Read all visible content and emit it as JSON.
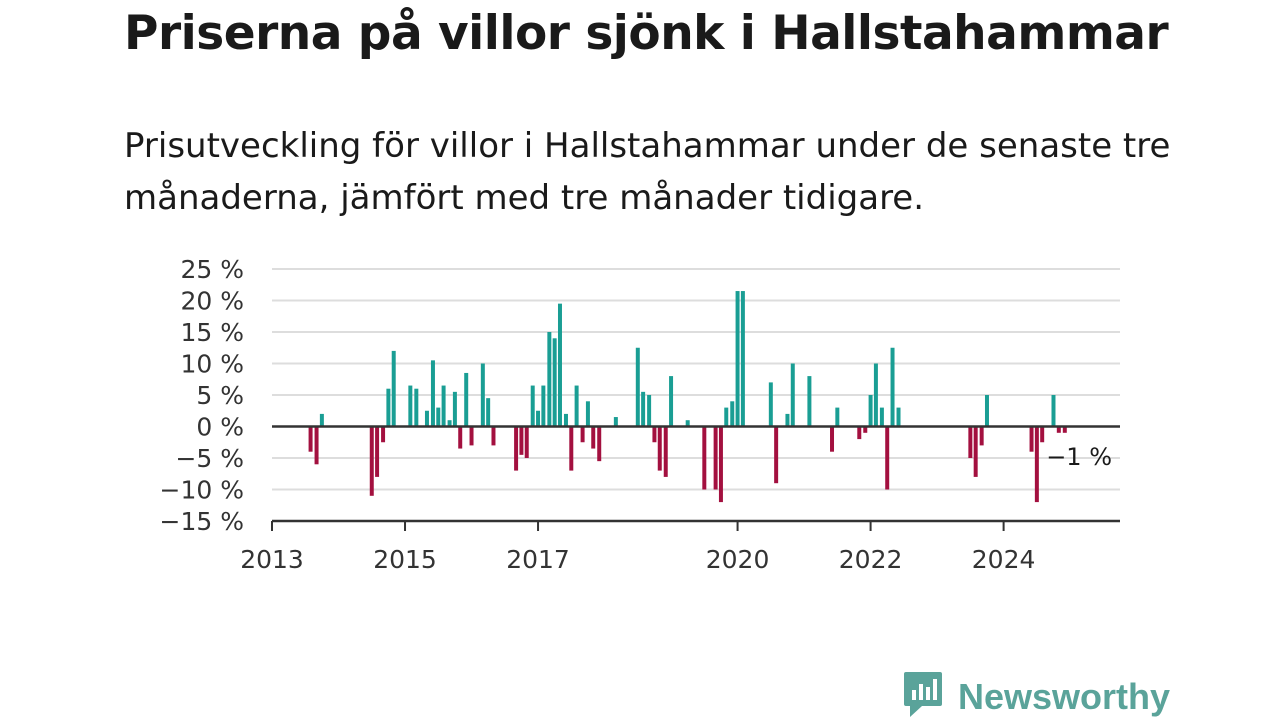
{
  "header": {
    "title": "Priserna på villor sjönk i Hallstahammar",
    "subtitle": "Prisutveckling för villor i Hallstahammar under de senaste tre månaderna, jämfört med tre månader tidigare."
  },
  "brand": {
    "name": "Newsworthy",
    "icon": "newsworthy-logo-icon"
  },
  "colors": {
    "positive": "#1a9e94",
    "negative": "#a3103f",
    "grid": "#dddddd",
    "axis": "#333333"
  },
  "chart_data": {
    "type": "bar",
    "ylim": [
      -15,
      25
    ],
    "yticks": [
      25,
      20,
      15,
      10,
      5,
      0,
      -5,
      -10,
      -15
    ],
    "ytick_labels": [
      "25 %",
      "20 %",
      "15 %",
      "10 %",
      "5 %",
      "0 %",
      "−5 %",
      "−10 %",
      "−15 %"
    ],
    "xlim": [
      2013.0,
      2025.75
    ],
    "xticks": [
      2013,
      2015,
      2017,
      2020,
      2022,
      2024
    ],
    "xtick_labels": [
      "2013",
      "2015",
      "2017",
      "2020",
      "2022",
      "2024"
    ],
    "last_label": "−1 %",
    "grid": true,
    "x": [
      2013.58,
      2013.67,
      2013.75,
      2014.5,
      2014.58,
      2014.67,
      2014.75,
      2014.83,
      2015.08,
      2015.17,
      2015.33,
      2015.42,
      2015.5,
      2015.58,
      2015.67,
      2015.75,
      2015.83,
      2015.92,
      2016.0,
      2016.17,
      2016.25,
      2016.33,
      2016.67,
      2016.75,
      2016.83,
      2016.92,
      2017.0,
      2017.08,
      2017.17,
      2017.25,
      2017.33,
      2017.42,
      2017.5,
      2017.58,
      2017.67,
      2017.75,
      2017.83,
      2017.92,
      2018.17,
      2018.5,
      2018.58,
      2018.67,
      2018.75,
      2018.83,
      2018.92,
      2019.0,
      2019.25,
      2019.5,
      2019.67,
      2019.75,
      2019.83,
      2019.92,
      2020.0,
      2020.08,
      2020.5,
      2020.58,
      2020.75,
      2020.83,
      2021.08,
      2021.42,
      2021.5,
      2021.83,
      2021.92,
      2022.0,
      2022.08,
      2022.17,
      2022.25,
      2022.33,
      2022.42,
      2023.5,
      2023.58,
      2023.67,
      2023.75,
      2024.42,
      2024.5,
      2024.58,
      2024.75,
      2024.83,
      2024.92
    ],
    "values": [
      -4,
      -6,
      2,
      -11,
      -8,
      -2.5,
      6,
      12,
      6.5,
      6,
      2.5,
      10.5,
      3,
      6.5,
      1,
      5.5,
      -3.5,
      8.5,
      -3,
      10,
      4.5,
      -3,
      -7,
      -4.5,
      -5,
      6.5,
      2.5,
      6.5,
      15,
      14,
      19.5,
      2,
      -7,
      6.5,
      -2.5,
      4,
      -3.5,
      -5.5,
      1.5,
      12.5,
      5.5,
      5,
      -2.5,
      -7,
      -8,
      8,
      1,
      -10,
      -10,
      -12,
      3,
      4,
      21.5,
      21.5,
      7,
      -9,
      2,
      10,
      8,
      -4,
      3,
      -2,
      -1,
      5,
      10,
      3,
      -10,
      12.5,
      3,
      -5,
      -8,
      -3,
      5,
      -4,
      -12,
      -2.5,
      5,
      -1,
      -1
    ]
  }
}
